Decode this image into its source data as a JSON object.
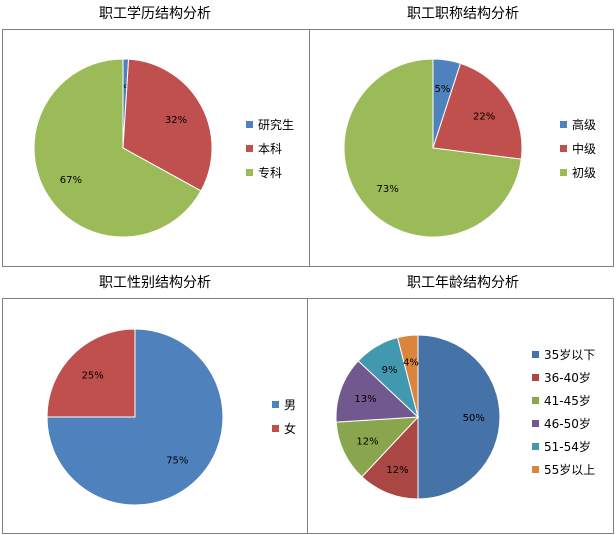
{
  "chart_data": [
    {
      "type": "pie",
      "title": "职工学历结构分析",
      "legend_position": "right",
      "slices": [
        {
          "label": "研究生",
          "value": 1,
          "display": "1%",
          "color": "#4F81BD"
        },
        {
          "label": "本科",
          "value": 32,
          "display": "32%",
          "color": "#C0504D"
        },
        {
          "label": "专科",
          "value": 67,
          "display": "67%",
          "color": "#9BBB59"
        }
      ]
    },
    {
      "type": "pie",
      "title": "职工职称结构分析",
      "legend_position": "right",
      "slices": [
        {
          "label": "高级",
          "value": 5,
          "display": "5%",
          "color": "#4F81BD"
        },
        {
          "label": "中级",
          "value": 22,
          "display": "22%",
          "color": "#C0504D"
        },
        {
          "label": "初级",
          "value": 73,
          "display": "73%",
          "color": "#9BBB59"
        }
      ]
    },
    {
      "type": "pie",
      "title": "职工性别结构分析",
      "legend_position": "right",
      "slices": [
        {
          "label": "男",
          "value": 75,
          "display": "75%",
          "color": "#4F81BD"
        },
        {
          "label": "女",
          "value": 25,
          "display": "25%",
          "color": "#C0504D"
        }
      ]
    },
    {
      "type": "pie",
      "title": "职工年龄结构分析",
      "legend_position": "right",
      "slices": [
        {
          "label": "35岁以下",
          "value": 50,
          "display": "50%",
          "color": "#4573A7"
        },
        {
          "label": "36-40岁",
          "value": 12,
          "display": "12%",
          "color": "#AA4643"
        },
        {
          "label": "41-45岁",
          "value": 12,
          "display": "12%",
          "color": "#89A54E"
        },
        {
          "label": "46-50岁",
          "value": 13,
          "display": "13%",
          "color": "#71588F"
        },
        {
          "label": "51-54岁",
          "value": 9,
          "display": "9%",
          "color": "#4198AF"
        },
        {
          "label": "55岁以上",
          "value": 4,
          "display": "4%",
          "color": "#DB843D"
        }
      ]
    }
  ]
}
